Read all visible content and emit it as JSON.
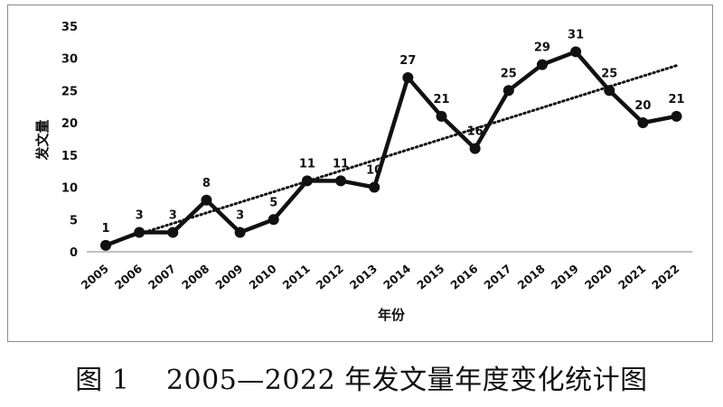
{
  "caption": "图 1　 2005—2022 年发文量年度变化统计图",
  "chart_data": {
    "type": "line",
    "title": "",
    "xlabel": "年份",
    "ylabel": "发文量",
    "categories": [
      "2005",
      "2006",
      "2007",
      "2008",
      "2009",
      "2010",
      "2011",
      "2012",
      "2013",
      "2014",
      "2015",
      "2016",
      "2017",
      "2018",
      "2019",
      "2020",
      "2021",
      "2022"
    ],
    "series": [
      {
        "values": [
          1,
          3,
          3,
          8,
          3,
          5,
          11,
          11,
          10,
          27,
          21,
          16,
          25,
          29,
          31,
          25,
          20,
          21
        ],
        "color": "#111111",
        "data_labels": true
      }
    ],
    "trendline": {
      "style": "dotted",
      "type": "linear",
      "color": "#111111"
    },
    "ylim": [
      0,
      35
    ],
    "yticks": [
      0,
      5,
      10,
      15,
      20,
      25,
      30,
      35
    ],
    "grid": false,
    "legend": "none"
  }
}
